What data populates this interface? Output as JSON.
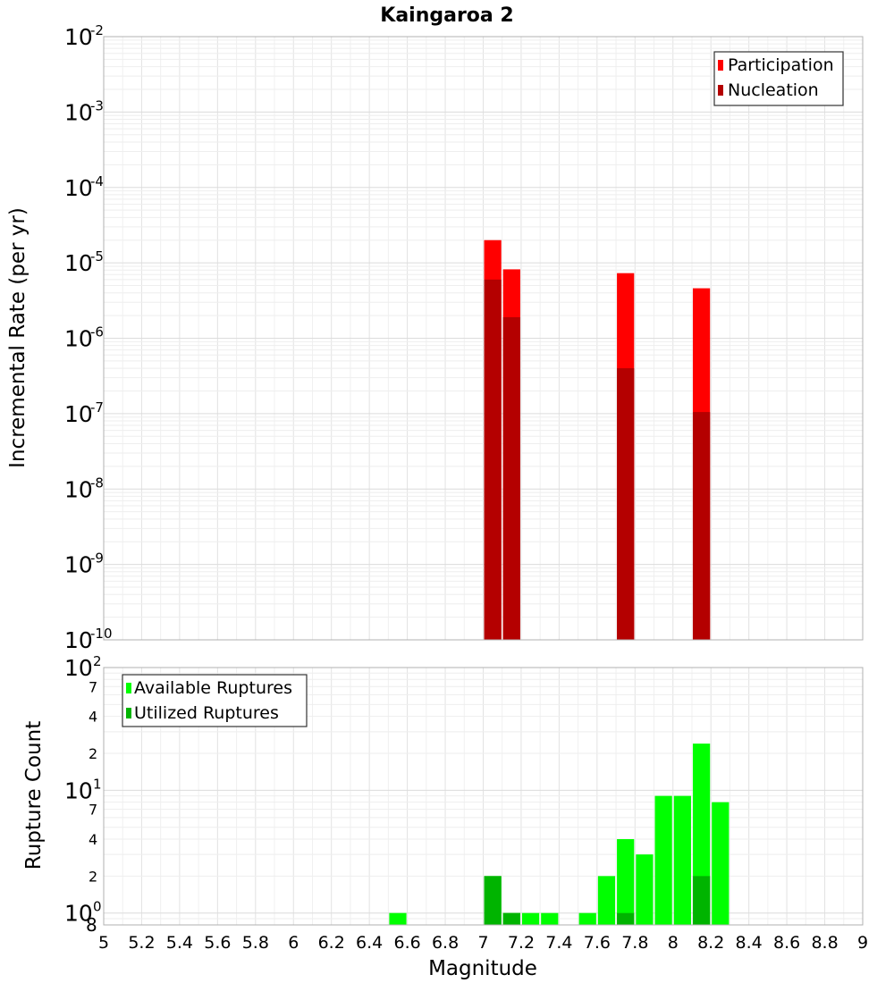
{
  "chart_data": [
    {
      "type": "bar",
      "title": "Kaingaroa 2",
      "xlabel": "",
      "ylabel": "Incremental Rate (per yr)",
      "yscale": "log",
      "ylim": [
        1e-10,
        0.01
      ],
      "xlim": [
        5,
        9
      ],
      "bar_width": 0.1,
      "grid": true,
      "legend_position": "top-right",
      "overlay": true,
      "series": [
        {
          "name": "Participation",
          "color": "#ff0000",
          "x": [
            7.05,
            7.15,
            7.75,
            8.15
          ],
          "values": [
            2e-05,
            8.2e-06,
            7.3e-06,
            4.6e-06
          ]
        },
        {
          "name": "Nucleation",
          "color": "#b40000",
          "x": [
            7.05,
            7.15,
            7.75,
            8.15
          ],
          "values": [
            6e-06,
            1.9e-06,
            4e-07,
            1.05e-07
          ]
        }
      ],
      "y_ticks": [
        {
          "value": 0.01,
          "base": "10",
          "exp": "-2"
        },
        {
          "value": 0.001,
          "base": "10",
          "exp": "-3"
        },
        {
          "value": 0.0001,
          "base": "10",
          "exp": "-4"
        },
        {
          "value": 1e-05,
          "base": "10",
          "exp": "-5"
        },
        {
          "value": 1e-06,
          "base": "10",
          "exp": "-6"
        },
        {
          "value": 1e-07,
          "base": "10",
          "exp": "-7"
        },
        {
          "value": 1e-08,
          "base": "10",
          "exp": "-8"
        },
        {
          "value": 1e-09,
          "base": "10",
          "exp": "-9"
        },
        {
          "value": 1e-10,
          "base": "10",
          "exp": "-10"
        }
      ]
    },
    {
      "type": "bar",
      "title": "",
      "xlabel": "Magnitude",
      "ylabel": "Rupture Count",
      "yscale": "log",
      "ylim": [
        0.8,
        100
      ],
      "xlim": [
        5,
        9
      ],
      "bar_width": 0.1,
      "grid": true,
      "legend_position": "top-left",
      "overlay": true,
      "series": [
        {
          "name": "Available Ruptures",
          "color": "#00ff00",
          "x": [
            6.55,
            7.05,
            7.15,
            7.25,
            7.35,
            7.55,
            7.65,
            7.75,
            7.85,
            7.95,
            8.05,
            8.15,
            8.25
          ],
          "values": [
            1,
            2,
            1,
            1,
            1,
            1,
            2,
            4,
            3,
            9,
            9,
            24,
            8
          ]
        },
        {
          "name": "Utilized Ruptures",
          "color": "#00b400",
          "x": [
            7.05,
            7.15,
            7.75,
            8.15
          ],
          "values": [
            2,
            1,
            1,
            2
          ]
        }
      ],
      "y_major_ticks": [
        {
          "value": 1,
          "base": "10",
          "exp": "0"
        },
        {
          "value": 10,
          "base": "10",
          "exp": "1"
        },
        {
          "value": 100,
          "base": "10",
          "exp": "2"
        }
      ],
      "y_minor_ticks": [
        {
          "value": 2,
          "label": "2"
        },
        {
          "value": 4,
          "label": "4"
        },
        {
          "value": 7,
          "label": "7"
        },
        {
          "value": 20,
          "label": "2"
        },
        {
          "value": 40,
          "label": "4"
        },
        {
          "value": 70,
          "label": "7"
        }
      ],
      "y_extra_tick": {
        "value": 0.8,
        "label": "8"
      },
      "x_ticks": [
        "5",
        "5.2",
        "5.4",
        "5.6",
        "5.8",
        "6",
        "6.2",
        "6.4",
        "6.6",
        "6.8",
        "7",
        "7.2",
        "7.4",
        "7.6",
        "7.8",
        "8",
        "8.2",
        "8.4",
        "8.6",
        "8.8",
        "9"
      ]
    }
  ]
}
